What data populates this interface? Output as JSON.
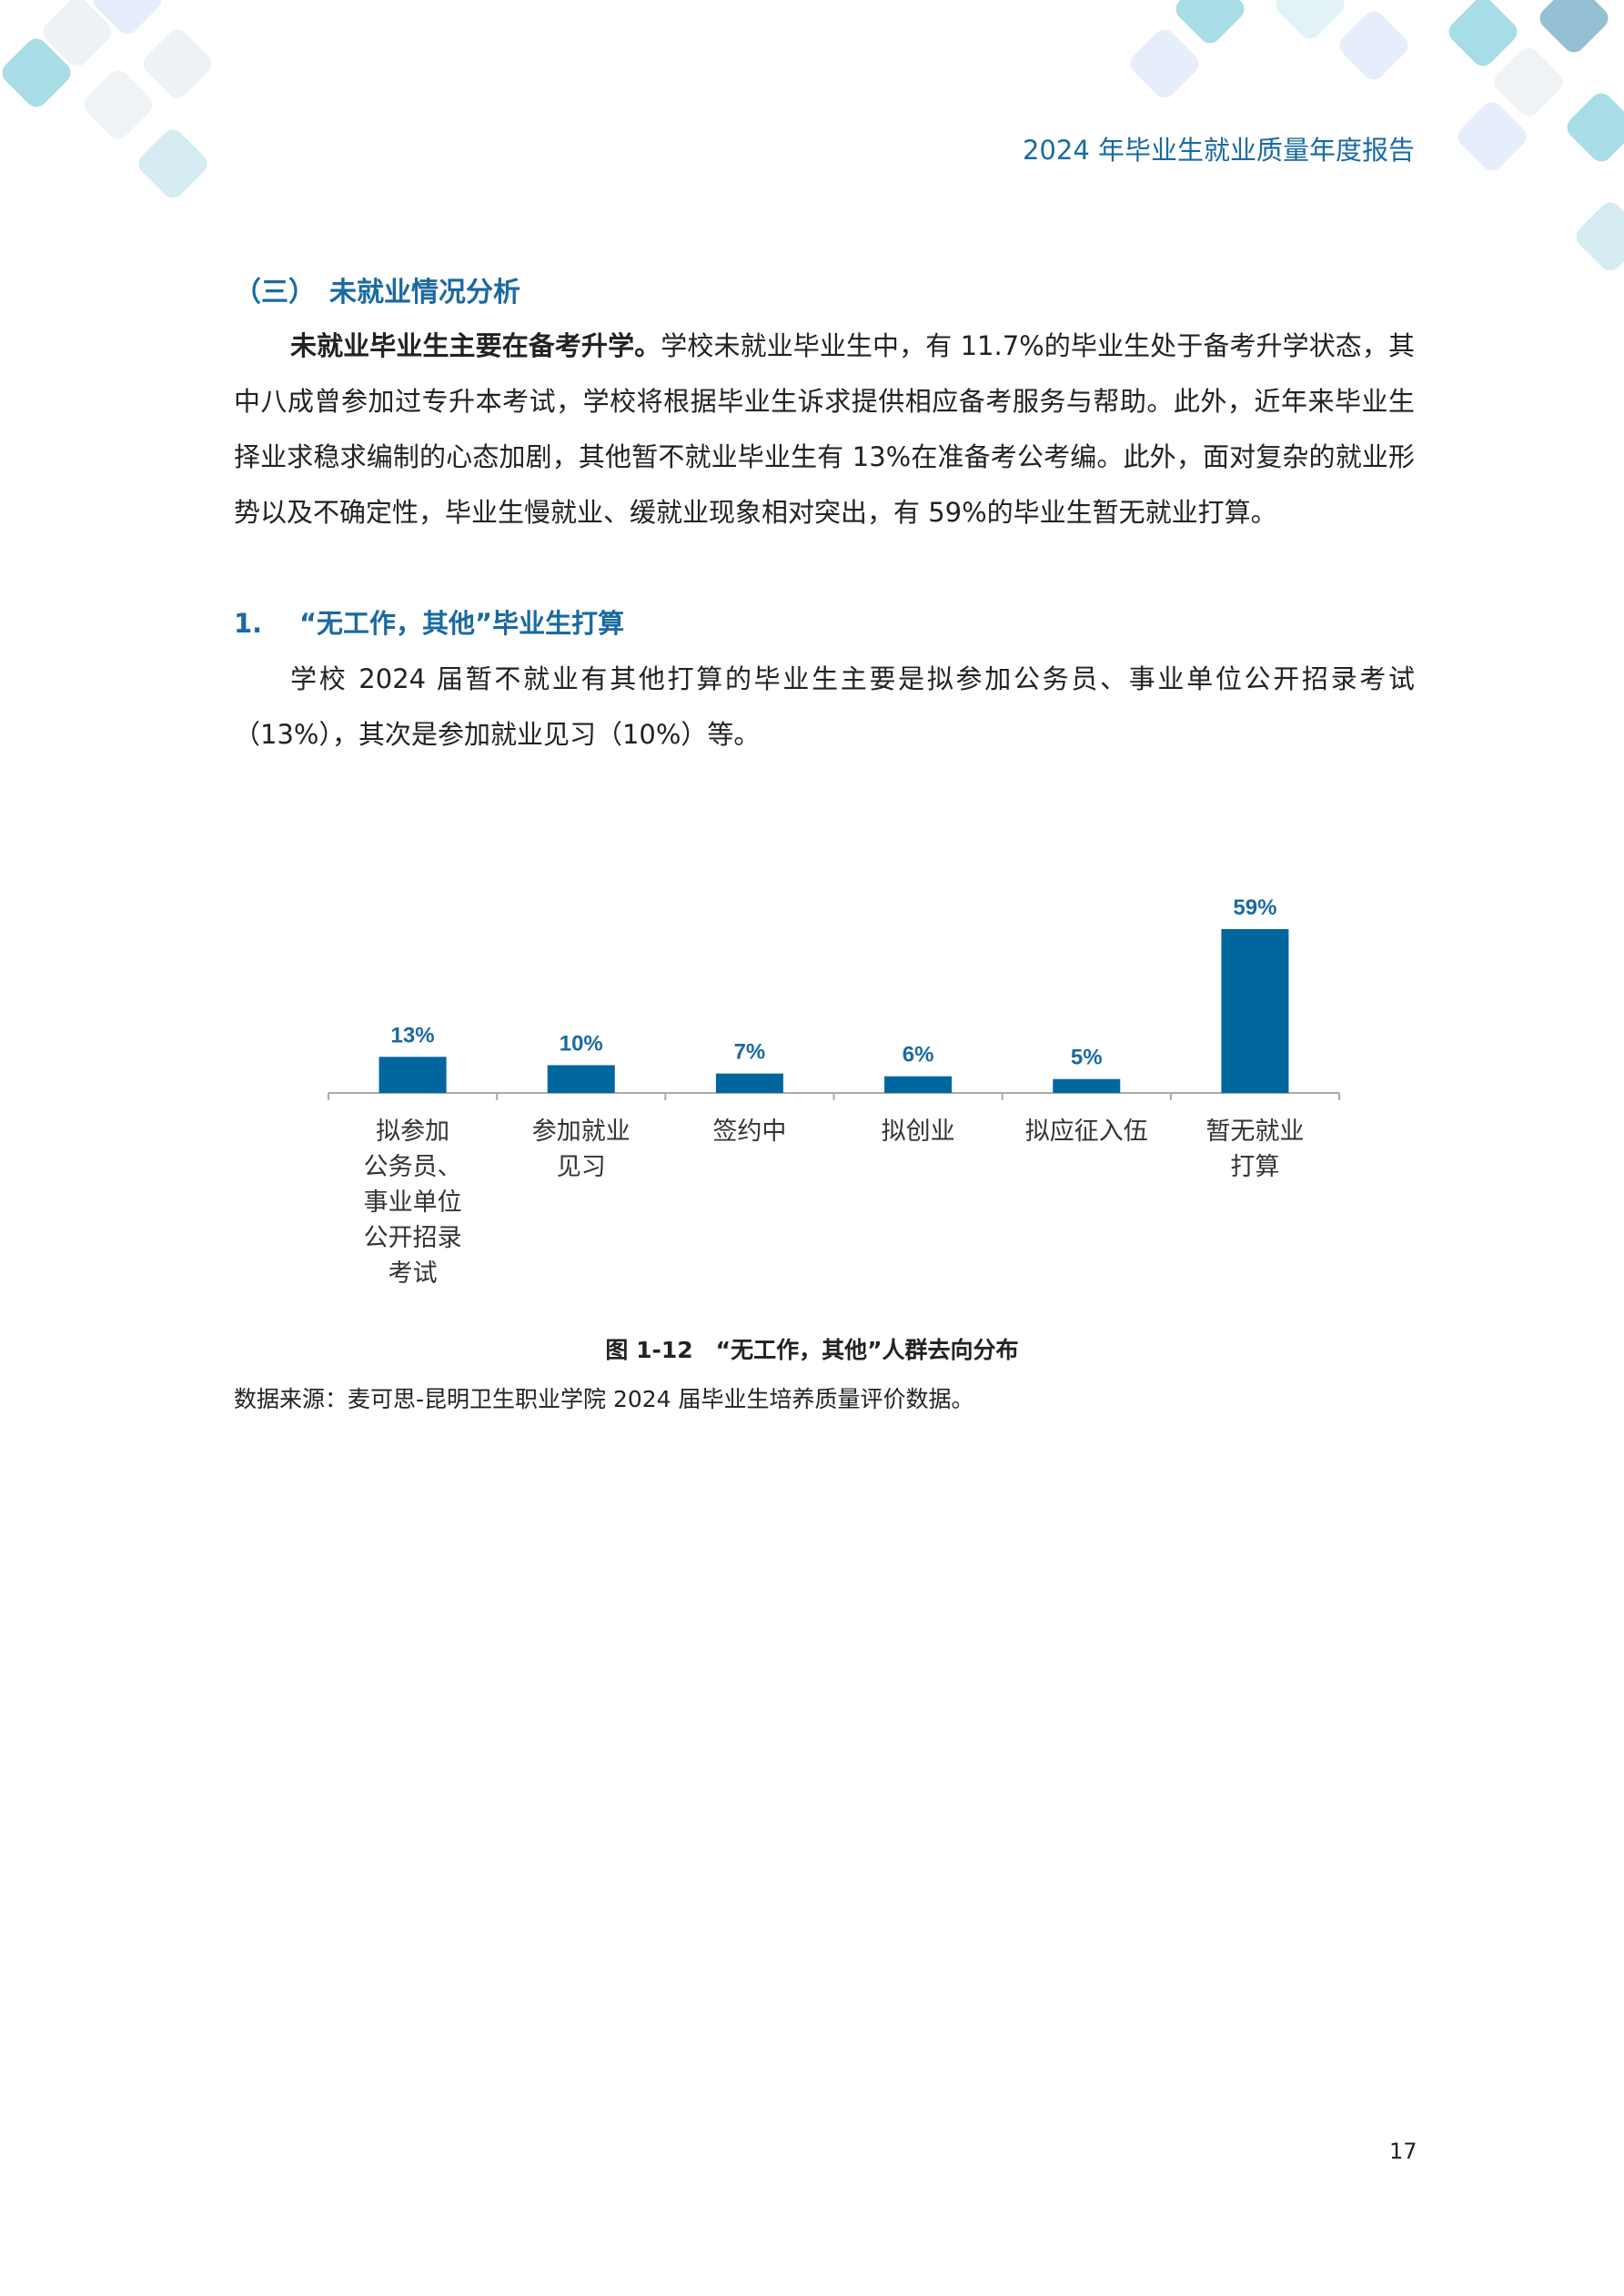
{
  "header": {
    "title": "2024 年毕业生就业质量年度报告"
  },
  "section": {
    "title": "（三）　未就业情况分析"
  },
  "para1": {
    "lead": "未就业毕业生主要在备考升学。",
    "text": "学校未就业毕业生中，有 11.7%的毕业生处于备考升学状态，其中八成曾参加过专升本考试，学校将根据毕业生诉求提供相应备考服务与帮助。此外，近年来毕业生择业求稳求编制的心态加剧，其他暂不就业毕业生有 13%在准备考公考编。此外，面对复杂的就业形势以及不确定性，毕业生慢就业、缓就业现象相对突出，有 59%的毕业生暂无就业打算。"
  },
  "subheading": {
    "num": "1.",
    "title": "“无工作，其他”毕业生打算"
  },
  "para2": {
    "text": "学校 2024 届暂不就业有其他打算的毕业生主要是拟参加公务员、事业单位公开招录考试（13%），其次是参加就业见习（10%）等。"
  },
  "chart_data": {
    "type": "bar",
    "categories": [
      "拟参加\n公务员、\n事业单位\n公开招录\n考试",
      "参加就业\n见习",
      "签约中",
      "拟创业",
      "拟应征入伍",
      "暂无就业\n打算"
    ],
    "values": [
      13,
      10,
      7,
      6,
      5,
      59
    ],
    "value_labels": [
      "13%",
      "10%",
      "7%",
      "6%",
      "5%",
      "59%"
    ],
    "unit": "%",
    "ylim": [
      0,
      59
    ],
    "grid": false,
    "bar_color": "#00669e",
    "label_color": "#1a6aa0"
  },
  "caption": "图 1-12　“无工作，其他”人群去向分布",
  "source": "数据来源：麦可思-昆明卫生职业学院 2024 届毕业生培养质量评价数据。",
  "page_number": "17"
}
